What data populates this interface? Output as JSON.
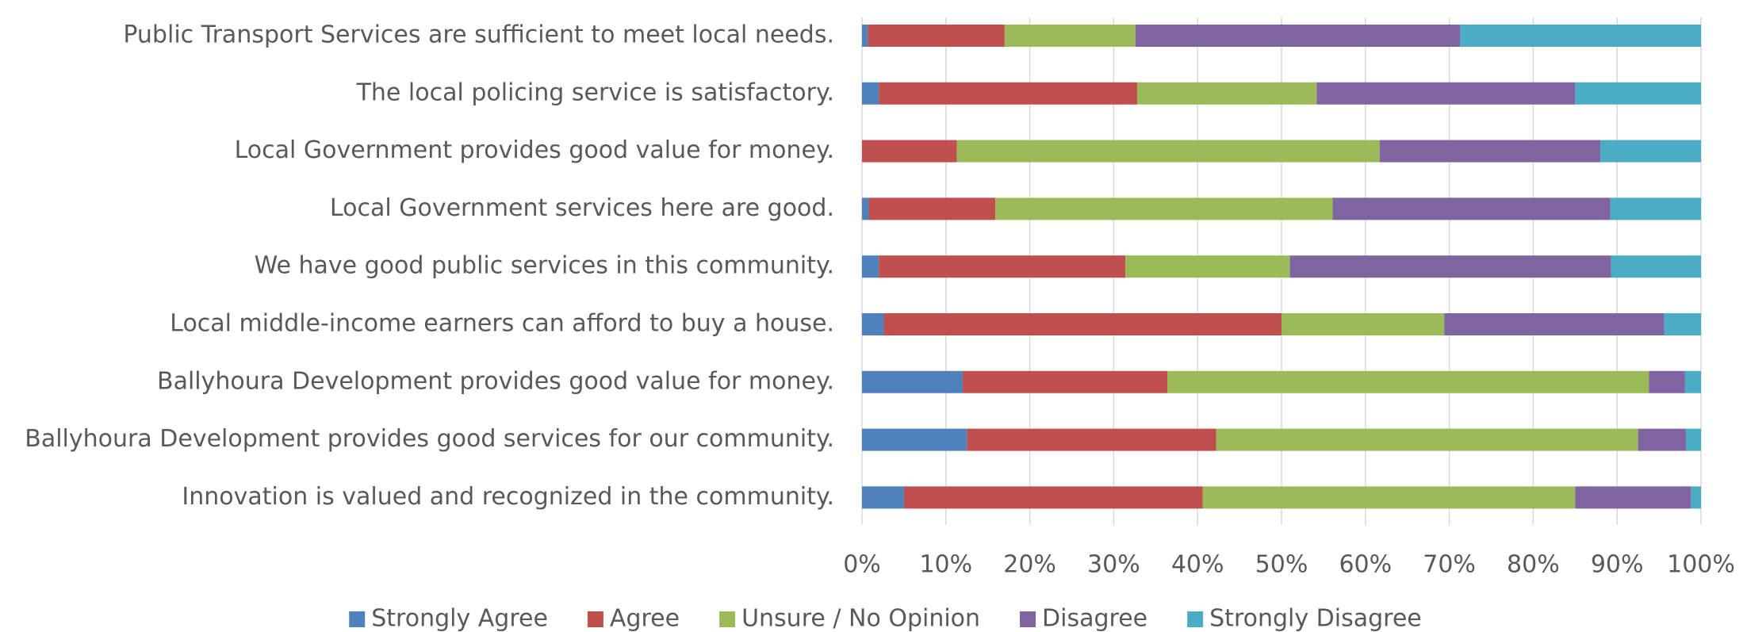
{
  "chart_data": {
    "type": "stacked-bar-horizontal",
    "categories": [
      "Public Transport Services are sufficient to meet local needs.",
      "The local policing service is satisfactory.",
      "Local Government provides good value for money.",
      "Local Government services here are good.",
      "We have good public services in this community.",
      "Local middle-income earners can afford to buy a house.",
      "Ballyhoura Development provides good value for money.",
      "Ballyhoura Development provides good services for our community.",
      "Innovation is valued and recognized in the community."
    ],
    "series": [
      {
        "name": "Strongly Agree",
        "color": "#4f81bd",
        "values": [
          0.7,
          2.0,
          0,
          0.8,
          2.0,
          2.6,
          12.0,
          12.5,
          5.0
        ]
      },
      {
        "name": "Agree",
        "color": "#c0504d",
        "values": [
          16.3,
          30.8,
          11.3,
          15.1,
          29.4,
          47.4,
          24.4,
          29.7,
          35.6
        ]
      },
      {
        "name": "Unsure / No Opinion",
        "color": "#9bbb59",
        "values": [
          15.6,
          21.4,
          50.4,
          40.2,
          19.6,
          19.4,
          57.4,
          50.3,
          44.4
        ]
      },
      {
        "name": "Disagree",
        "color": "#8064a2",
        "values": [
          38.7,
          30.8,
          26.3,
          33.1,
          38.3,
          26.2,
          4.3,
          5.7,
          13.8
        ]
      },
      {
        "name": "Strongly Disagree",
        "color": "#4bacc6",
        "values": [
          28.7,
          15.0,
          12.0,
          10.8,
          10.7,
          4.4,
          1.9,
          1.8,
          1.2
        ]
      }
    ],
    "xlim": [
      0,
      100
    ],
    "xticks": [
      {
        "value": 0,
        "label": "0%"
      },
      {
        "value": 10,
        "label": "10%"
      },
      {
        "value": 20,
        "label": "20%"
      },
      {
        "value": 30,
        "label": "30%"
      },
      {
        "value": 40,
        "label": "40%"
      },
      {
        "value": 50,
        "label": "50%"
      },
      {
        "value": 60,
        "label": "60%"
      },
      {
        "value": 70,
        "label": "70%"
      },
      {
        "value": 80,
        "label": "80%"
      },
      {
        "value": 90,
        "label": "90%"
      },
      {
        "value": 100,
        "label": "100%"
      }
    ],
    "grid": true,
    "legend": "bottom"
  }
}
